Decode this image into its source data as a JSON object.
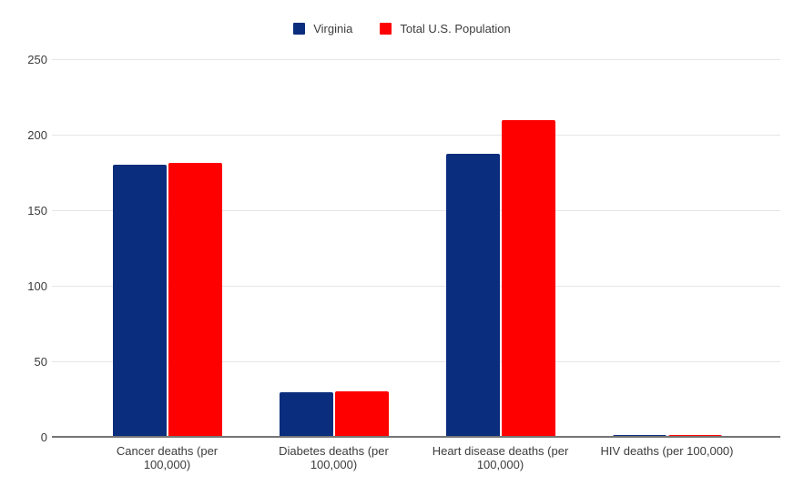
{
  "chart_data": {
    "type": "bar",
    "title": "",
    "categories": [
      "Cancer deaths (per 100,000)",
      "Diabetes deaths (per 100,000)",
      "Heart disease deaths (per 100,000)",
      "HIV deaths (per 100,000)"
    ],
    "category_label_lines": [
      [
        "Cancer deaths (per",
        "100,000)"
      ],
      [
        "Diabetes deaths (per",
        "100,000)"
      ],
      [
        "Heart disease deaths (per",
        "100,000)"
      ],
      [
        "HIV deaths (per 100,000)"
      ]
    ],
    "category_slugs": [
      "cancer-deaths",
      "diabetes-deaths",
      "heart-disease-deaths",
      "hiv-deaths"
    ],
    "series": [
      {
        "name": "Virginia",
        "slug": "virginia",
        "color": "#0b2d7d",
        "values": [
          181,
          30,
          188,
          2
        ]
      },
      {
        "name": "Total U.S. Population",
        "slug": "total-us-population",
        "color": "#ff0000",
        "values": [
          182,
          31,
          210,
          2
        ]
      }
    ],
    "xlabel": "",
    "ylabel": "",
    "ylim": [
      0,
      250
    ],
    "yticks": [
      0,
      50,
      100,
      150,
      200,
      250
    ],
    "grid": "horizontal",
    "legend_position": "top",
    "colors": {
      "background": "#ffffff",
      "gridline": "#e6e6e6",
      "axis": "#757575",
      "label": "#3c3c3c"
    }
  }
}
